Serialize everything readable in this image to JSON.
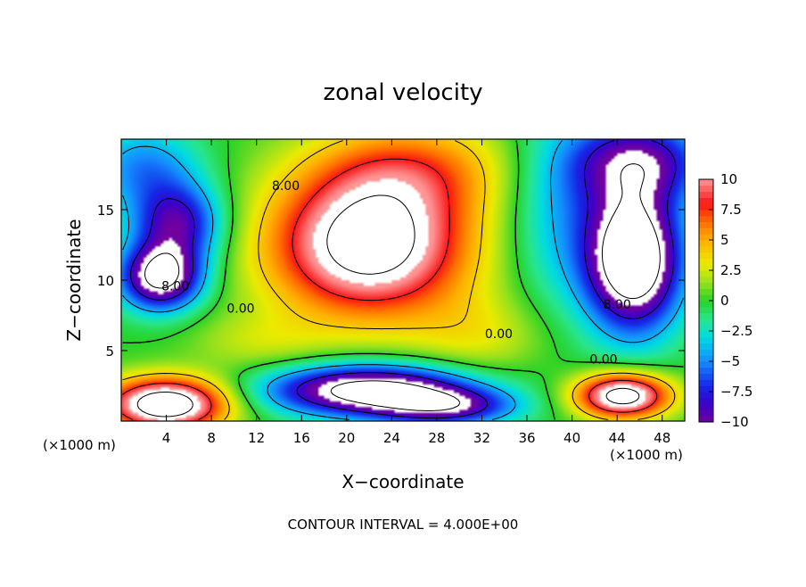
{
  "chart_data": {
    "type": "heatmap",
    "title": "zonal velocity",
    "xlabel": "X−coordinate",
    "ylabel": "Z−coordinate",
    "x_unit_label_left": "(×1000 m)",
    "x_unit_label_right": "(×1000 m)",
    "xlim": [
      0,
      50
    ],
    "ylim": [
      0,
      20
    ],
    "x_ticks": [
      4,
      8,
      12,
      16,
      20,
      24,
      28,
      32,
      36,
      40,
      44,
      48
    ],
    "y_ticks": [
      5,
      10,
      15
    ],
    "footer": "CONTOUR INTERVAL = 4.000E+00",
    "colorbar": {
      "min": -10,
      "max": 10,
      "ticks": [
        10,
        7.5,
        5,
        2.5,
        0,
        -2.5,
        -5,
        -7.5,
        -10
      ],
      "tick_labels": [
        "10",
        "7.5",
        "5",
        "2.5",
        "0",
        "−2.5",
        "−5",
        "−7.5",
        "−10"
      ]
    },
    "contour_labels": [
      {
        "text": "8.00",
        "x": 14.6,
        "z": 16.7
      },
      {
        "text": "0.00",
        "x": 10.6,
        "z": 8.0
      },
      {
        "text": "8.00",
        "x": 4.8,
        "z": 9.6
      },
      {
        "text": "0.00",
        "x": 33.5,
        "z": 6.2
      },
      {
        "text": "8.00",
        "x": 44.0,
        "z": 8.3
      },
      {
        "text": "0.00",
        "x": 42.8,
        "z": 4.4
      }
    ],
    "features": [
      {
        "kind": "max",
        "x": 22,
        "z": 12,
        "value": 12
      },
      {
        "kind": "min",
        "x": 45.5,
        "z": 11.5,
        "value": -12
      },
      {
        "kind": "min",
        "x": 3.5,
        "z": 10,
        "value": -11
      },
      {
        "kind": "min",
        "x": 5,
        "z": 13.5,
        "value": -10
      },
      {
        "kind": "max",
        "x": 4,
        "z": 1.5,
        "value": 10
      },
      {
        "kind": "max",
        "x": 44.5,
        "z": 1.8,
        "value": 10
      },
      {
        "kind": "min",
        "x": 22,
        "z": 2.5,
        "value": -10
      },
      {
        "kind": "min",
        "x": 46,
        "z": 18.5,
        "value": -9
      }
    ]
  }
}
